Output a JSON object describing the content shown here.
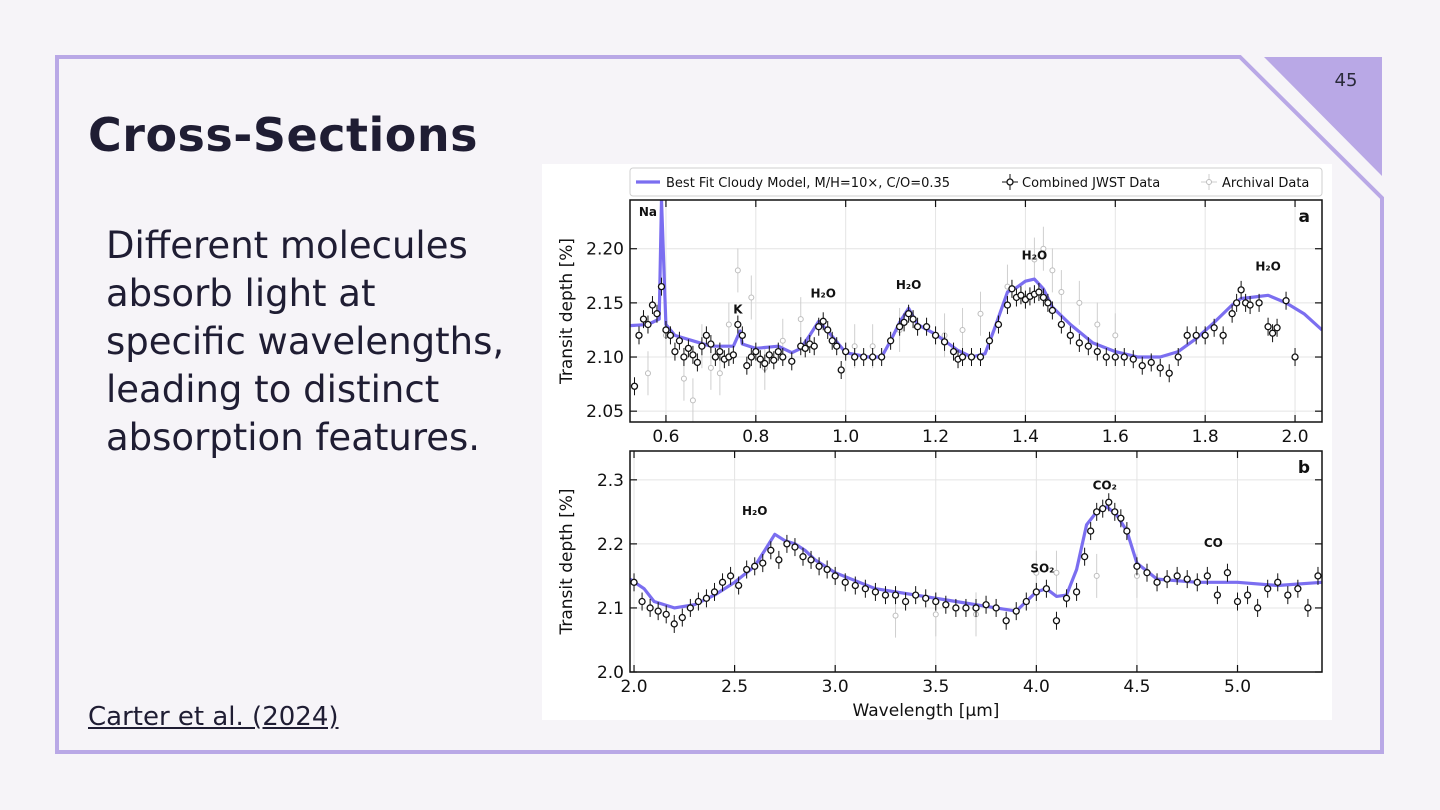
{
  "slide": {
    "number": "45",
    "title": "Cross-Sections",
    "body": "Different molecules absorb light at specific wavelengths, leading to distinct absorption features.",
    "citation": "Carter et al. (2024)",
    "accent_color": "#b9a8e6"
  },
  "chart_data": [
    {
      "type": "scatter",
      "panel": "a",
      "title": "",
      "xlabel": "",
      "ylabel": "Transit depth [%]",
      "xlim": [
        0.52,
        2.06
      ],
      "ylim": [
        2.04,
        2.245
      ],
      "xticks": [
        "0.6",
        "0.8",
        "1.0",
        "1.2",
        "1.4",
        "1.6",
        "1.8",
        "2.0"
      ],
      "yticks": [
        "2.05",
        "2.10",
        "2.15",
        "2.20"
      ],
      "legend": {
        "placement": "top",
        "entries": [
          "Best Fit Cloudy Model, M/H=10×, C/O=0.35",
          "Combined JWST Data",
          "Archival Data"
        ]
      },
      "annotations": [
        {
          "text": "Na",
          "x": 0.56,
          "y": 2.23
        },
        {
          "text": "K",
          "x": 0.76,
          "y": 2.14
        },
        {
          "text": "H₂O",
          "x": 0.95,
          "y": 2.155
        },
        {
          "text": "H₂O",
          "x": 1.14,
          "y": 2.163
        },
        {
          "text": "H₂O",
          "x": 1.42,
          "y": 2.19
        },
        {
          "text": "H₂O",
          "x": 1.94,
          "y": 2.18
        }
      ],
      "series": [
        {
          "name": "Best Fit Cloudy Model, M/H=10×, C/O=0.35",
          "color": "#7b6ef0",
          "x": [
            0.52,
            0.56,
            0.585,
            0.59,
            0.6,
            0.62,
            0.66,
            0.7,
            0.75,
            0.765,
            0.77,
            0.8,
            0.85,
            0.88,
            0.9,
            0.92,
            0.94,
            0.96,
            1.0,
            1.05,
            1.08,
            1.1,
            1.12,
            1.14,
            1.16,
            1.2,
            1.25,
            1.28,
            1.31,
            1.33,
            1.36,
            1.38,
            1.4,
            1.42,
            1.44,
            1.46,
            1.5,
            1.55,
            1.6,
            1.65,
            1.7,
            1.74,
            1.78,
            1.82,
            1.86,
            1.88,
            1.9,
            1.94,
            1.98,
            2.02,
            2.06
          ],
          "y": [
            2.129,
            2.13,
            2.135,
            2.245,
            2.13,
            2.12,
            2.115,
            2.11,
            2.11,
            2.124,
            2.112,
            2.108,
            2.11,
            2.104,
            2.108,
            2.12,
            2.133,
            2.124,
            2.104,
            2.1,
            2.1,
            2.115,
            2.132,
            2.145,
            2.13,
            2.121,
            2.106,
            2.1,
            2.103,
            2.125,
            2.16,
            2.164,
            2.17,
            2.172,
            2.163,
            2.146,
            2.13,
            2.113,
            2.105,
            2.1,
            2.1,
            2.105,
            2.117,
            2.132,
            2.148,
            2.154,
            2.155,
            2.157,
            2.15,
            2.14,
            2.125
          ]
        },
        {
          "name": "Combined JWST Data",
          "color": "#111111",
          "x": [
            0.53,
            0.54,
            0.55,
            0.56,
            0.57,
            0.58,
            0.59,
            0.6,
            0.61,
            0.62,
            0.63,
            0.64,
            0.65,
            0.66,
            0.67,
            0.68,
            0.69,
            0.7,
            0.71,
            0.72,
            0.73,
            0.74,
            0.75,
            0.76,
            0.77,
            0.78,
            0.79,
            0.8,
            0.81,
            0.82,
            0.83,
            0.84,
            0.85,
            0.86,
            0.88,
            0.9,
            0.91,
            0.92,
            0.93,
            0.94,
            0.95,
            0.96,
            0.97,
            0.98,
            0.99,
            1.0,
            1.02,
            1.04,
            1.06,
            1.08,
            1.1,
            1.12,
            1.13,
            1.14,
            1.15,
            1.16,
            1.18,
            1.2,
            1.22,
            1.24,
            1.25,
            1.26,
            1.28,
            1.3,
            1.32,
            1.34,
            1.36,
            1.37,
            1.38,
            1.39,
            1.4,
            1.41,
            1.42,
            1.43,
            1.44,
            1.45,
            1.46,
            1.48,
            1.5,
            1.52,
            1.54,
            1.56,
            1.58,
            1.6,
            1.62,
            1.64,
            1.66,
            1.68,
            1.7,
            1.72,
            1.74,
            1.76,
            1.78,
            1.8,
            1.82,
            1.84,
            1.86,
            1.87,
            1.88,
            1.89,
            1.9,
            1.92,
            1.94,
            1.95,
            1.96,
            1.98,
            2.0
          ],
          "y": [
            2.073,
            2.12,
            2.135,
            2.13,
            2.148,
            2.14,
            2.165,
            2.125,
            2.12,
            2.105,
            2.115,
            2.1,
            2.108,
            2.102,
            2.095,
            2.11,
            2.12,
            2.112,
            2.1,
            2.105,
            2.098,
            2.1,
            2.102,
            2.13,
            2.12,
            2.092,
            2.1,
            2.105,
            2.098,
            2.094,
            2.102,
            2.097,
            2.105,
            2.1,
            2.096,
            2.11,
            2.108,
            2.112,
            2.11,
            2.128,
            2.133,
            2.125,
            2.115,
            2.11,
            2.088,
            2.105,
            2.1,
            2.1,
            2.1,
            2.1,
            2.115,
            2.128,
            2.132,
            2.14,
            2.135,
            2.128,
            2.128,
            2.12,
            2.114,
            2.105,
            2.098,
            2.1,
            2.1,
            2.1,
            2.115,
            2.13,
            2.148,
            2.163,
            2.155,
            2.157,
            2.153,
            2.156,
            2.158,
            2.16,
            2.155,
            2.15,
            2.143,
            2.13,
            2.12,
            2.113,
            2.11,
            2.105,
            2.1,
            2.1,
            2.1,
            2.098,
            2.092,
            2.095,
            2.09,
            2.085,
            2.1,
            2.12,
            2.12,
            2.12,
            2.127,
            2.12,
            2.14,
            2.15,
            2.162,
            2.15,
            2.148,
            2.15,
            2.128,
            2.122,
            2.127,
            2.152,
            2.1
          ]
        },
        {
          "name": "Archival Data",
          "color": "#bfbfbf",
          "x": [
            0.56,
            0.6,
            0.64,
            0.66,
            0.68,
            0.7,
            0.72,
            0.74,
            0.76,
            0.79,
            0.82,
            0.86,
            0.9,
            1.02,
            1.06,
            1.12,
            1.22,
            1.26,
            1.3,
            1.36,
            1.42,
            1.44,
            1.46,
            1.48,
            1.52,
            1.56,
            1.6
          ],
          "y": [
            2.085,
            2.12,
            2.08,
            2.06,
            2.11,
            2.09,
            2.085,
            2.13,
            2.18,
            2.155,
            2.09,
            2.115,
            2.135,
            2.11,
            2.11,
            2.125,
            2.12,
            2.125,
            2.14,
            2.165,
            2.19,
            2.2,
            2.18,
            2.16,
            2.15,
            2.13,
            2.12
          ]
        }
      ]
    },
    {
      "type": "scatter",
      "panel": "b",
      "title": "",
      "xlabel": "Wavelength [μm]",
      "ylabel": "Transit depth [%]",
      "xlim": [
        1.98,
        5.42
      ],
      "ylim": [
        2.0,
        2.345
      ],
      "xticks": [
        "2.0",
        "2.5",
        "3.0",
        "3.5",
        "4.0",
        "4.5",
        "5.0"
      ],
      "yticks": [
        "2.0",
        "2.1",
        "2.2",
        "2.3"
      ],
      "annotations": [
        {
          "text": "H₂O",
          "x": 2.6,
          "y": 2.245
        },
        {
          "text": "SO₂",
          "x": 4.03,
          "y": 2.155
        },
        {
          "text": "CO₂",
          "x": 4.34,
          "y": 2.285
        },
        {
          "text": "CO",
          "x": 4.88,
          "y": 2.195
        }
      ],
      "series": [
        {
          "name": "Best Fit Cloudy Model, M/H=10×, C/O=0.35",
          "color": "#7b6ef0",
          "x": [
            1.98,
            2.05,
            2.1,
            2.2,
            2.3,
            2.4,
            2.5,
            2.6,
            2.65,
            2.7,
            2.75,
            2.8,
            2.85,
            2.9,
            3.0,
            3.2,
            3.4,
            3.6,
            3.8,
            3.9,
            3.95,
            4.0,
            4.05,
            4.1,
            4.15,
            4.2,
            4.25,
            4.3,
            4.35,
            4.4,
            4.45,
            4.5,
            4.6,
            4.8,
            5.0,
            5.2,
            5.42
          ],
          "y": [
            2.145,
            2.13,
            2.11,
            2.1,
            2.105,
            2.12,
            2.14,
            2.165,
            2.19,
            2.215,
            2.205,
            2.2,
            2.19,
            2.175,
            2.155,
            2.13,
            2.12,
            2.11,
            2.1,
            2.095,
            2.11,
            2.125,
            2.13,
            2.118,
            2.12,
            2.16,
            2.23,
            2.25,
            2.258,
            2.245,
            2.22,
            2.17,
            2.145,
            2.14,
            2.14,
            2.135,
            2.14
          ]
        },
        {
          "name": "Combined JWST Data",
          "color": "#111111",
          "x": [
            2.0,
            2.04,
            2.08,
            2.12,
            2.16,
            2.2,
            2.24,
            2.28,
            2.32,
            2.36,
            2.4,
            2.44,
            2.48,
            2.52,
            2.56,
            2.6,
            2.64,
            2.68,
            2.72,
            2.76,
            2.8,
            2.84,
            2.88,
            2.92,
            2.96,
            3.0,
            3.05,
            3.1,
            3.15,
            3.2,
            3.25,
            3.3,
            3.35,
            3.4,
            3.45,
            3.5,
            3.55,
            3.6,
            3.65,
            3.7,
            3.75,
            3.8,
            3.85,
            3.9,
            3.95,
            4.0,
            4.05,
            4.1,
            4.15,
            4.2,
            4.24,
            4.27,
            4.3,
            4.33,
            4.36,
            4.39,
            4.42,
            4.45,
            4.5,
            4.55,
            4.6,
            4.65,
            4.7,
            4.75,
            4.8,
            4.85,
            4.9,
            4.95,
            5.0,
            5.05,
            5.1,
            5.15,
            5.2,
            5.25,
            5.3,
            5.35,
            5.4
          ],
          "y": [
            2.14,
            2.11,
            2.1,
            2.095,
            2.09,
            2.075,
            2.085,
            2.1,
            2.11,
            2.115,
            2.125,
            2.14,
            2.15,
            2.135,
            2.16,
            2.165,
            2.17,
            2.19,
            2.175,
            2.2,
            2.195,
            2.18,
            2.175,
            2.165,
            2.16,
            2.15,
            2.14,
            2.135,
            2.13,
            2.125,
            2.12,
            2.12,
            2.11,
            2.12,
            2.115,
            2.11,
            2.105,
            2.1,
            2.1,
            2.1,
            2.105,
            2.1,
            2.08,
            2.095,
            2.11,
            2.125,
            2.13,
            2.08,
            2.115,
            2.125,
            2.18,
            2.22,
            2.25,
            2.255,
            2.265,
            2.25,
            2.24,
            2.22,
            2.165,
            2.155,
            2.14,
            2.145,
            2.15,
            2.145,
            2.14,
            2.15,
            2.12,
            2.155,
            2.11,
            2.12,
            2.1,
            2.13,
            2.14,
            2.12,
            2.13,
            2.1,
            2.15
          ]
        },
        {
          "name": "Archival Data",
          "color": "#bfbfbf",
          "x": [
            3.3,
            3.5,
            3.7,
            4.0,
            4.1,
            4.3,
            4.5
          ],
          "y": [
            2.088,
            2.09,
            2.09,
            2.155,
            2.155,
            2.15,
            2.15
          ]
        }
      ]
    }
  ]
}
